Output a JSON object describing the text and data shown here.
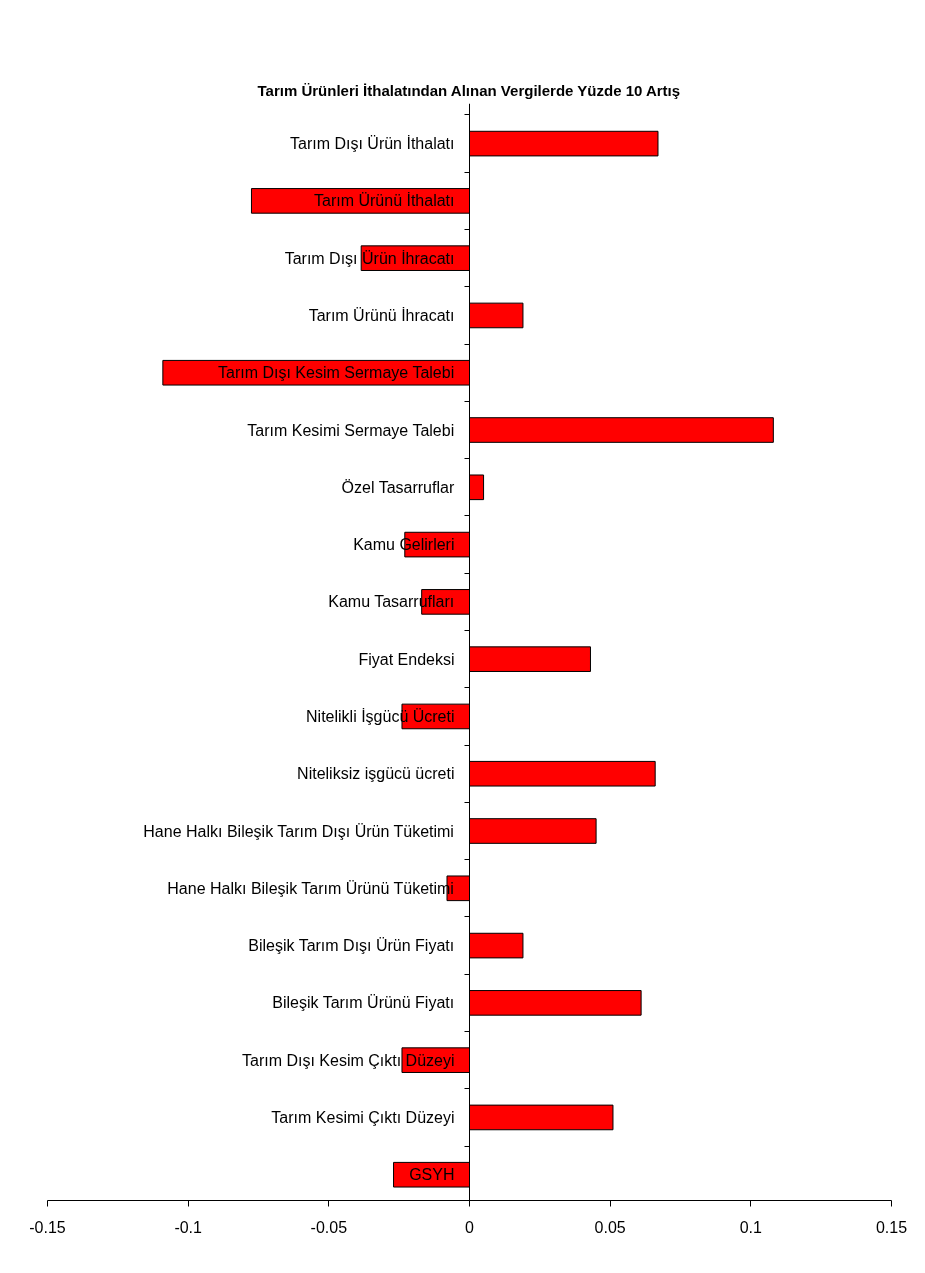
{
  "chart_data": {
    "type": "bar",
    "orientation": "horizontal",
    "title": "Tarım Ürünleri İthalatından Alınan Vergilerde Yüzde 10 Artış",
    "categories": [
      "Tarım Dışı Ürün İthalatı",
      "Tarım Ürünü İthalatı",
      "Tarım Dışı Ürün İhracatı",
      "Tarım Ürünü İhracatı",
      "Tarım Dışı Kesim Sermaye Talebi",
      "Tarım Kesimi Sermaye Talebi",
      "Özel Tasarruflar",
      "Kamu Gelirleri",
      "Kamu Tasarrufları",
      "Fiyat Endeksi",
      "Nitelikli İşgücü Ücreti",
      "Niteliksiz işgücü ücreti",
      "Hane Halkı Bileşik Tarım Dışı Ürün Tüketimi",
      "Hane Halkı Bileşik Tarım Ürünü Tüketimi",
      "Bileşik Tarım Dışı Ürün Fiyatı",
      "Bileşik Tarım Ürünü Fiyatı",
      "Tarım Dışı Kesim Çıktı Düzeyi",
      "Tarım Kesimi Çıktı Düzeyi",
      "GSYH"
    ],
    "values": [
      0.067,
      -0.0775,
      -0.0385,
      0.019,
      -0.109,
      0.108,
      0.005,
      -0.023,
      -0.017,
      0.043,
      -0.024,
      0.066,
      0.045,
      -0.008,
      0.019,
      0.061,
      -0.024,
      0.051,
      -0.027
    ],
    "color": "#ff0000",
    "xlim": [
      -0.15,
      0.15
    ],
    "xticks": [
      -0.15,
      -0.1,
      -0.05,
      0,
      0.05,
      0.1,
      0.15
    ],
    "grid": false
  }
}
